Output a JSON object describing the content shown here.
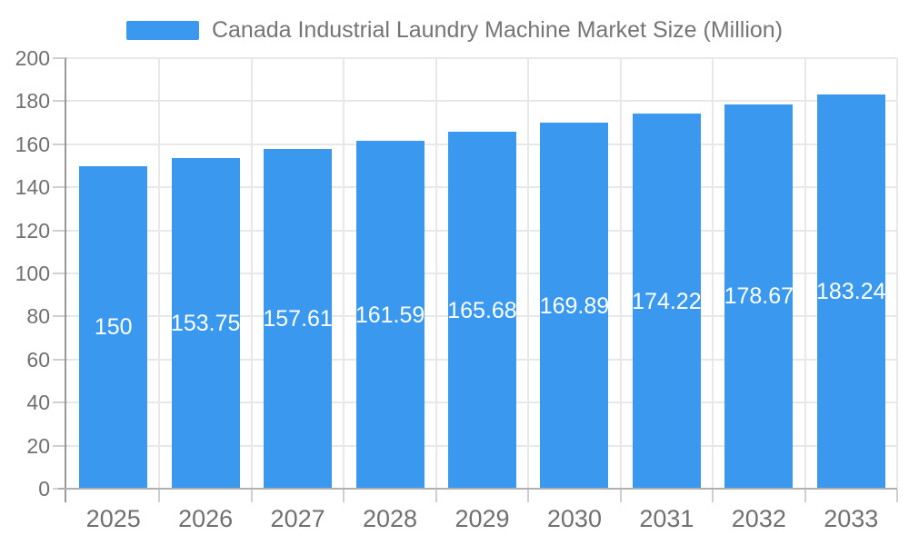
{
  "chart_data": {
    "type": "bar",
    "title": "Canada Industrial Laundry Machine Market Size (Million)",
    "legend": {
      "label": "Canada Industrial Laundry Machine Market Size (Million)",
      "position": "top"
    },
    "categories": [
      "2025",
      "2026",
      "2027",
      "2028",
      "2029",
      "2030",
      "2031",
      "2032",
      "2033"
    ],
    "series": [
      {
        "name": "Canada Industrial Laundry Machine Market Size (Million)",
        "values": [
          150,
          153.75,
          157.61,
          161.59,
          165.68,
          169.89,
          174.22,
          178.67,
          183.24
        ]
      }
    ],
    "value_labels": [
      "150",
      "153.75",
      "157.61",
      "161.59",
      "165.68",
      "169.89",
      "174.22",
      "178.67",
      "183.24"
    ],
    "xlabel": "",
    "ylabel": "",
    "ylim": [
      0,
      200
    ],
    "ytick_step": 20,
    "yticks": [
      0,
      20,
      40,
      60,
      80,
      100,
      120,
      140,
      160,
      180,
      200
    ],
    "grid": true,
    "legend_position": "top",
    "colors": {
      "bar": "#3A99EE",
      "grid": "#E8E8E8",
      "y_axis": "#999999",
      "x_axis": "#B0B0B0",
      "tick": "#CFCFCF",
      "axis_label": "#707070",
      "title": "#757575",
      "value_label": "#FFFFFF",
      "background": "#FFFFFF"
    }
  }
}
